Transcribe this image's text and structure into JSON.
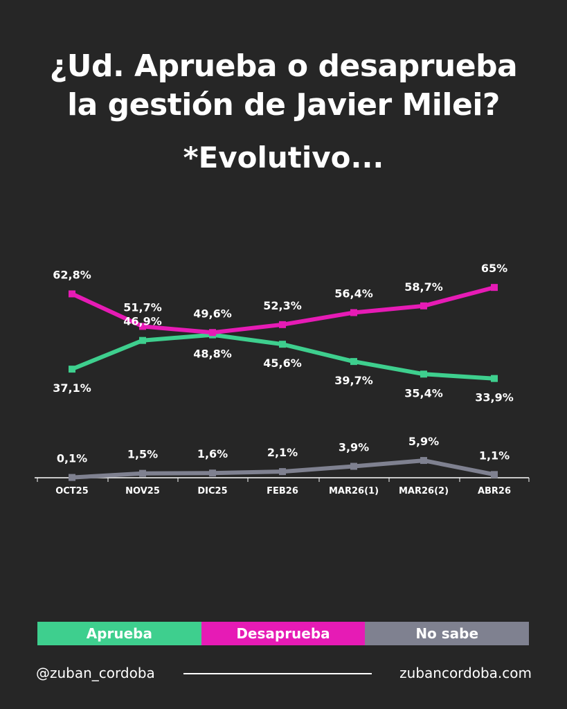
{
  "header": {
    "title_line1": "¿Ud. Aprueba o desaprueba",
    "title_line2": "la gestión de Javier Milei?",
    "subtitle": "*Evolutivo..."
  },
  "chart_data": {
    "type": "line",
    "categories": [
      "OCT25",
      "NOV25",
      "DIC25",
      "FEB26",
      "MAR26(1)",
      "MAR26(2)",
      "ABR26"
    ],
    "ylim": [
      0,
      70
    ],
    "grid": false,
    "legend_position": "bottom",
    "series": [
      {
        "name": "Aprueba",
        "color": "#3ecf8e",
        "values": [
          37.1,
          46.9,
          48.8,
          45.6,
          39.7,
          35.4,
          33.9
        ],
        "labels": [
          "37,1%",
          "46,9%",
          "48,8%",
          "45,6%",
          "39,7%",
          "35,4%",
          "33,9%"
        ]
      },
      {
        "name": "Desaprueba",
        "color": "#e61bb5",
        "values": [
          62.8,
          51.7,
          49.6,
          52.3,
          56.4,
          58.7,
          65
        ],
        "labels": [
          "62,8%",
          "51,7%",
          "49,6%",
          "52,3%",
          "56,4%",
          "58,7%",
          "65%"
        ]
      },
      {
        "name": "No sabe",
        "color": "#7f8190",
        "values": [
          0.1,
          1.5,
          1.6,
          2.1,
          3.9,
          5.9,
          1.1
        ],
        "labels": [
          "0,1%",
          "1,5%",
          "1,6%",
          "2,1%",
          "3,9%",
          "5,9%",
          "1,1%"
        ]
      }
    ]
  },
  "legend": [
    {
      "label": "Aprueba",
      "color": "#3ecf8e"
    },
    {
      "label": "Desaprueba",
      "color": "#e61bb5"
    },
    {
      "label": "No sabe",
      "color": "#7f8190"
    }
  ],
  "footer": {
    "handle": "@zuban_cordoba",
    "website": "zubancordoba.com"
  }
}
